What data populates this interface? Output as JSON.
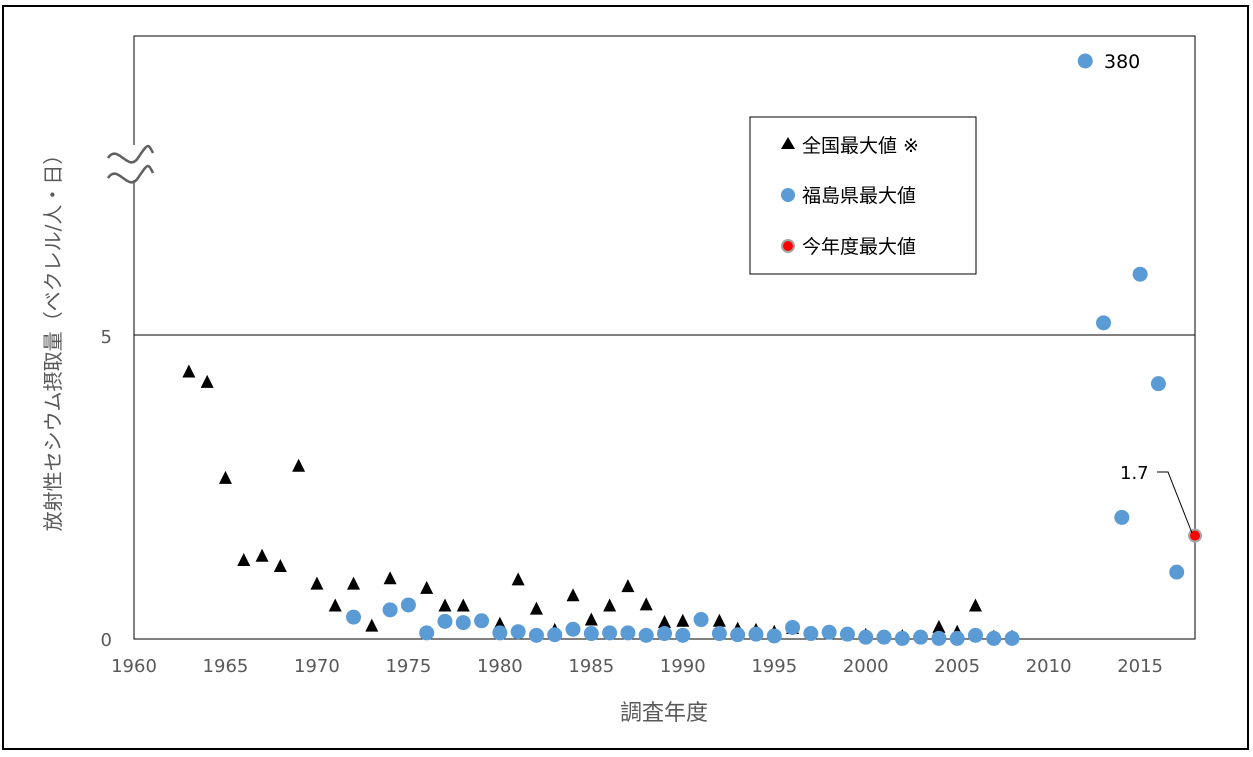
{
  "chart_data": {
    "type": "scatter",
    "xlabel": "調査年度",
    "ylabel": "放射性セシウム摂取量（ベクレル/人・日）",
    "x_ticks": [
      1960,
      1965,
      1970,
      1975,
      1980,
      1985,
      1990,
      1995,
      2000,
      2005,
      2010,
      2015
    ],
    "xlim": [
      1960,
      2018
    ],
    "y_ticks": [
      0,
      5
    ],
    "ylim_lower_segment": [
      0,
      5
    ],
    "axis_break": true,
    "grid": false,
    "legend_position": "top-right",
    "annotations": [
      {
        "text": "380",
        "x": 2012,
        "y": 380
      },
      {
        "text": "1.7",
        "x": 2018,
        "y": 1.7
      }
    ],
    "series": [
      {
        "name": "全国最大値 ※",
        "marker": "triangle",
        "color": "#000000",
        "points": [
          [
            1963,
            4.4
          ],
          [
            1964,
            4.23
          ],
          [
            1965,
            2.65
          ],
          [
            1966,
            1.3
          ],
          [
            1967,
            1.37
          ],
          [
            1968,
            1.2
          ],
          [
            1969,
            2.85
          ],
          [
            1970,
            0.91
          ],
          [
            1971,
            0.55
          ],
          [
            1972,
            0.91
          ],
          [
            1973,
            0.22
          ],
          [
            1974,
            1.0
          ],
          [
            1976,
            0.84
          ],
          [
            1977,
            0.55
          ],
          [
            1978,
            0.55
          ],
          [
            1980,
            0.25
          ],
          [
            1981,
            0.98
          ],
          [
            1982,
            0.5
          ],
          [
            1983,
            0.15
          ],
          [
            1984,
            0.72
          ],
          [
            1985,
            0.32
          ],
          [
            1986,
            0.55
          ],
          [
            1987,
            0.87
          ],
          [
            1988,
            0.57
          ],
          [
            1989,
            0.28
          ],
          [
            1990,
            0.3
          ],
          [
            1992,
            0.3
          ],
          [
            1993,
            0.17
          ],
          [
            1994,
            0.15
          ],
          [
            1995,
            0.12
          ],
          [
            1996,
            0.18
          ],
          [
            2000,
            0.07
          ],
          [
            2002,
            0.05
          ],
          [
            2004,
            0.2
          ],
          [
            2005,
            0.12
          ],
          [
            2006,
            0.55
          ],
          [
            2007,
            0.04
          ],
          [
            2008,
            0.04
          ]
        ]
      },
      {
        "name": "福島県最大値",
        "marker": "circle",
        "color": "#5b9bd5",
        "points": [
          [
            1972,
            0.36
          ],
          [
            1974,
            0.48
          ],
          [
            1975,
            0.56
          ],
          [
            1976,
            0.1
          ],
          [
            1977,
            0.29
          ],
          [
            1978,
            0.27
          ],
          [
            1979,
            0.3
          ],
          [
            1980,
            0.1
          ],
          [
            1981,
            0.12
          ],
          [
            1982,
            0.06
          ],
          [
            1983,
            0.07
          ],
          [
            1984,
            0.16
          ],
          [
            1985,
            0.09
          ],
          [
            1986,
            0.1
          ],
          [
            1987,
            0.1
          ],
          [
            1988,
            0.06
          ],
          [
            1989,
            0.09
          ],
          [
            1990,
            0.06
          ],
          [
            1991,
            0.32
          ],
          [
            1992,
            0.09
          ],
          [
            1993,
            0.07
          ],
          [
            1994,
            0.08
          ],
          [
            1995,
            0.05
          ],
          [
            1996,
            0.19
          ],
          [
            1997,
            0.09
          ],
          [
            1998,
            0.11
          ],
          [
            1999,
            0.08
          ],
          [
            2000,
            0.03
          ],
          [
            2001,
            0.03
          ],
          [
            2002,
            0.01
          ],
          [
            2003,
            0.03
          ],
          [
            2004,
            0.01
          ],
          [
            2005,
            0.01
          ],
          [
            2006,
            0.06
          ],
          [
            2007,
            0.01
          ],
          [
            2008,
            0.01
          ],
          [
            2012,
            380
          ],
          [
            2013,
            5.2
          ],
          [
            2014,
            2.0
          ],
          [
            2015,
            6.0
          ],
          [
            2016,
            4.2
          ],
          [
            2017,
            1.1
          ]
        ]
      },
      {
        "name": "今年度最大値",
        "marker": "circle",
        "color": "#ff0000",
        "points": [
          [
            2018,
            1.7
          ]
        ]
      }
    ]
  }
}
